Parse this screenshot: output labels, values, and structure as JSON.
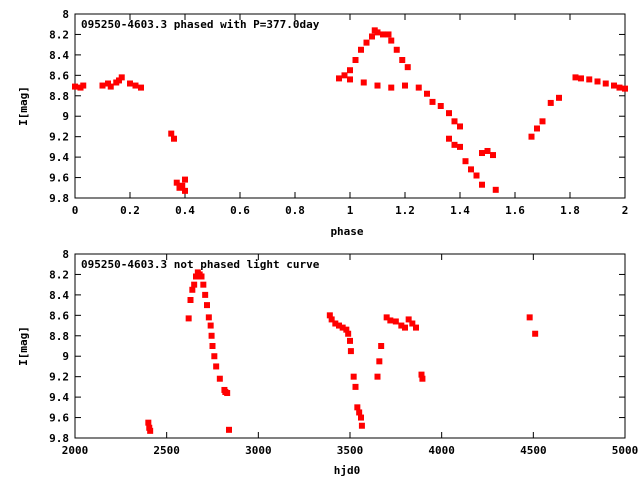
{
  "chart_data": [
    {
      "type": "scatter",
      "title": "095250-4603.3 phased with P=377.0day",
      "xlabel": "phase",
      "ylabel": "I[mag]",
      "xlim": [
        0,
        2
      ],
      "ylim": [
        9.8,
        8
      ],
      "y_inverted": true,
      "xticks": [
        "0",
        "0.2",
        "0.4",
        "0.6",
        "0.8",
        "1",
        "1.2",
        "1.4",
        "1.6",
        "1.8",
        "2"
      ],
      "yticks": [
        "8",
        "8.2",
        "8.4",
        "8.6",
        "8.8",
        "9",
        "9.2",
        "9.4",
        "9.6",
        "9.8"
      ],
      "marker_color": "#ff0000",
      "series": [
        {
          "points": [
            [
              0.0,
              8.71
            ],
            [
              0.02,
              8.72
            ],
            [
              0.03,
              8.7
            ],
            [
              0.1,
              8.7
            ],
            [
              0.12,
              8.68
            ],
            [
              0.13,
              8.71
            ],
            [
              0.15,
              8.67
            ],
            [
              0.16,
              8.65
            ],
            [
              0.17,
              8.62
            ],
            [
              0.2,
              8.68
            ],
            [
              0.22,
              8.7
            ],
            [
              0.24,
              8.72
            ],
            [
              0.35,
              9.17
            ],
            [
              0.36,
              9.22
            ],
            [
              0.37,
              9.65
            ],
            [
              0.38,
              9.7
            ],
            [
              0.39,
              9.68
            ],
            [
              0.4,
              9.62
            ],
            [
              0.4,
              9.73
            ],
            [
              0.96,
              8.63
            ],
            [
              0.98,
              8.6
            ],
            [
              1.0,
              8.55
            ],
            [
              1.02,
              8.45
            ],
            [
              1.04,
              8.35
            ],
            [
              1.06,
              8.28
            ],
            [
              1.08,
              8.22
            ],
            [
              1.09,
              8.16
            ],
            [
              1.1,
              8.18
            ],
            [
              1.12,
              8.2
            ],
            [
              1.14,
              8.2
            ],
            [
              1.15,
              8.26
            ],
            [
              1.17,
              8.35
            ],
            [
              1.19,
              8.45
            ],
            [
              1.21,
              8.52
            ],
            [
              1.0,
              8.64
            ],
            [
              1.05,
              8.67
            ],
            [
              1.1,
              8.7
            ],
            [
              1.15,
              8.72
            ],
            [
              1.2,
              8.7
            ],
            [
              1.25,
              8.72
            ],
            [
              1.28,
              8.78
            ],
            [
              1.3,
              8.86
            ],
            [
              1.33,
              8.9
            ],
            [
              1.36,
              8.97
            ],
            [
              1.38,
              9.05
            ],
            [
              1.4,
              9.1
            ],
            [
              1.36,
              9.22
            ],
            [
              1.38,
              9.28
            ],
            [
              1.4,
              9.3
            ],
            [
              1.42,
              9.44
            ],
            [
              1.44,
              9.52
            ],
            [
              1.46,
              9.58
            ],
            [
              1.48,
              9.67
            ],
            [
              1.48,
              9.36
            ],
            [
              1.5,
              9.34
            ],
            [
              1.52,
              9.38
            ],
            [
              1.53,
              9.72
            ],
            [
              1.66,
              9.2
            ],
            [
              1.68,
              9.12
            ],
            [
              1.7,
              9.05
            ],
            [
              1.73,
              8.87
            ],
            [
              1.76,
              8.82
            ],
            [
              1.82,
              8.62
            ],
            [
              1.84,
              8.63
            ],
            [
              1.87,
              8.64
            ],
            [
              1.9,
              8.66
            ],
            [
              1.93,
              8.68
            ],
            [
              1.96,
              8.7
            ],
            [
              1.98,
              8.72
            ],
            [
              2.0,
              8.73
            ]
          ]
        }
      ]
    },
    {
      "type": "scatter",
      "title": "095250-4603.3 not phased light curve",
      "xlabel": "hjd0",
      "ylabel": "I[mag]",
      "xlim": [
        2000,
        5000
      ],
      "ylim": [
        9.8,
        8
      ],
      "y_inverted": true,
      "xticks": [
        "2000",
        "2500",
        "3000",
        "3500",
        "4000",
        "4500",
        "5000"
      ],
      "yticks": [
        "8",
        "8.2",
        "8.4",
        "8.6",
        "8.8",
        "9",
        "9.2",
        "9.4",
        "9.6",
        "9.8"
      ],
      "marker_color": "#ff0000",
      "series": [
        {
          "points": [
            [
              2400,
              9.65
            ],
            [
              2405,
              9.7
            ],
            [
              2410,
              9.73
            ],
            [
              2620,
              8.63
            ],
            [
              2630,
              8.45
            ],
            [
              2640,
              8.35
            ],
            [
              2650,
              8.3
            ],
            [
              2660,
              8.22
            ],
            [
              2670,
              8.18
            ],
            [
              2680,
              8.2
            ],
            [
              2690,
              8.22
            ],
            [
              2700,
              8.3
            ],
            [
              2710,
              8.4
            ],
            [
              2720,
              8.5
            ],
            [
              2730,
              8.62
            ],
            [
              2740,
              8.7
            ],
            [
              2745,
              8.8
            ],
            [
              2750,
              8.9
            ],
            [
              2760,
              9.0
            ],
            [
              2770,
              9.1
            ],
            [
              2790,
              9.22
            ],
            [
              2815,
              9.33
            ],
            [
              2820,
              9.35
            ],
            [
              2830,
              9.36
            ],
            [
              2840,
              9.72
            ],
            [
              3390,
              8.6
            ],
            [
              3400,
              8.64
            ],
            [
              3420,
              8.68
            ],
            [
              3440,
              8.7
            ],
            [
              3460,
              8.72
            ],
            [
              3480,
              8.74
            ],
            [
              3490,
              8.78
            ],
            [
              3500,
              8.85
            ],
            [
              3505,
              8.95
            ],
            [
              3520,
              9.2
            ],
            [
              3530,
              9.3
            ],
            [
              3540,
              9.5
            ],
            [
              3550,
              9.55
            ],
            [
              3560,
              9.6
            ],
            [
              3565,
              9.68
            ],
            [
              3650,
              9.2
            ],
            [
              3660,
              9.05
            ],
            [
              3670,
              8.9
            ],
            [
              3700,
              8.62
            ],
            [
              3720,
              8.65
            ],
            [
              3750,
              8.66
            ],
            [
              3780,
              8.7
            ],
            [
              3800,
              8.72
            ],
            [
              3820,
              8.64
            ],
            [
              3840,
              8.68
            ],
            [
              3860,
              8.72
            ],
            [
              3890,
              9.18
            ],
            [
              3895,
              9.22
            ],
            [
              4480,
              8.62
            ],
            [
              4510,
              8.78
            ]
          ]
        }
      ]
    }
  ]
}
